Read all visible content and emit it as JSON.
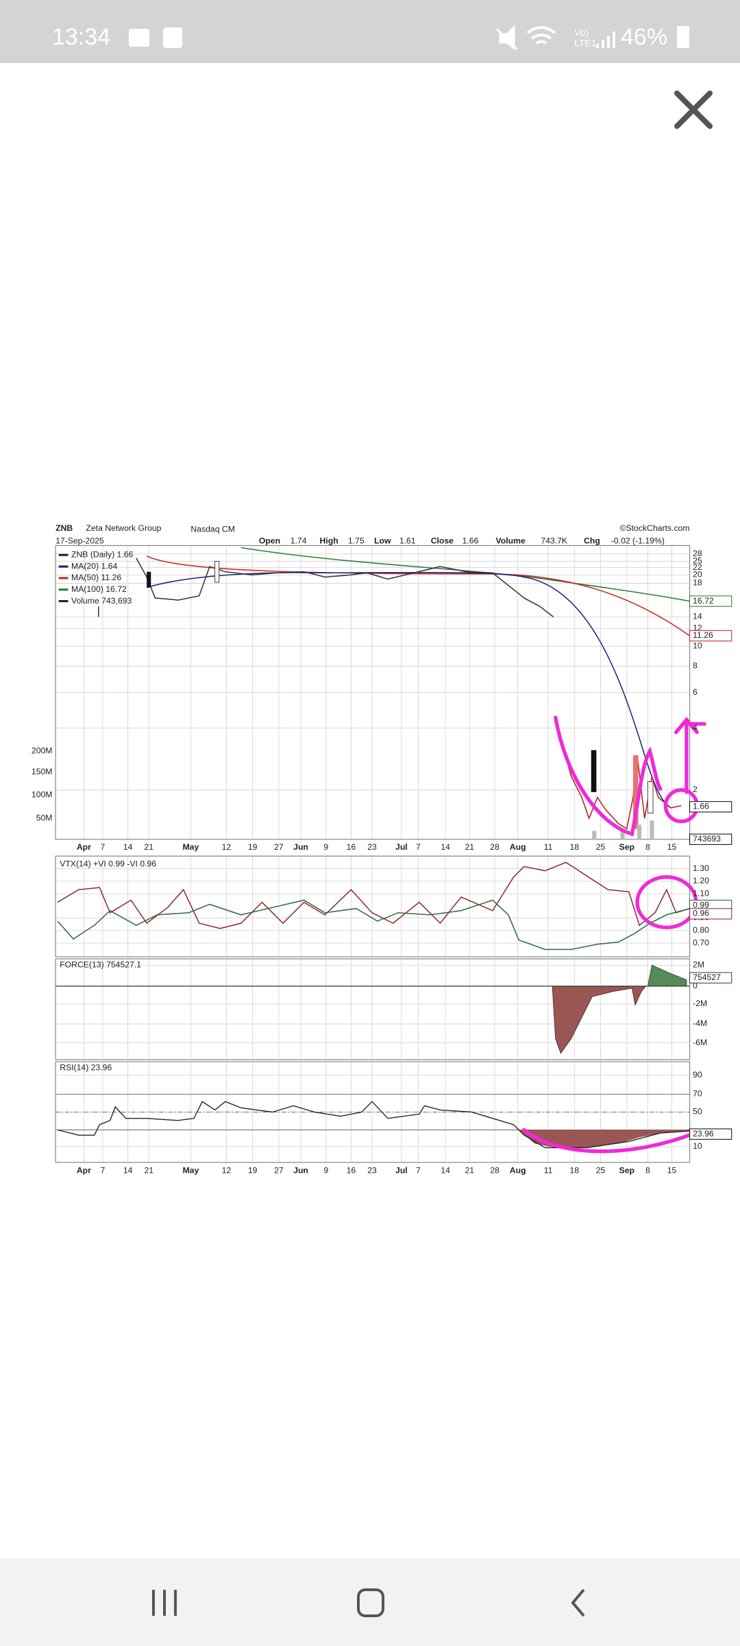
{
  "status_bar": {
    "time": "13:34",
    "network": "Vo)\nLTE1",
    "battery": "46%"
  },
  "chart": {
    "symbol": "ZNB",
    "company": "Zeta Network Group",
    "exchange": "Nasdaq CM",
    "source": "©StockCharts.com",
    "date": "17-Sep-2025",
    "quote": [
      [
        "Open",
        "1.74"
      ],
      [
        "High",
        "1.75"
      ],
      [
        "Low",
        "1.61"
      ],
      [
        "Close",
        "1.66"
      ],
      [
        "Volume",
        "743.7K"
      ],
      [
        "Chg",
        "-0.02 (-1.19%)"
      ]
    ],
    "legend": [
      "ZNB (Daily) 1.66",
      "MA(20) 1.64",
      "MA(50) 11.26",
      "MA(100) 16.72",
      "Volume 743,693"
    ],
    "price_ticks": [
      "28",
      "25",
      "22",
      "20",
      "18",
      "14",
      "12",
      "10",
      "8",
      "6",
      "4",
      "2"
    ],
    "volume_ticks": [
      "200M",
      "150M",
      "100M",
      "50M"
    ],
    "price_badges": [
      "16.72",
      "11.26",
      "1.66",
      "743693"
    ],
    "x_labels": [
      "Apr",
      "7",
      "14",
      "21",
      "May",
      "12",
      "19",
      "27",
      "Jun",
      "9",
      "16",
      "23",
      "Jul",
      "7",
      "14",
      "21",
      "28",
      "Aug",
      "11",
      "18",
      "25",
      "Sep",
      "8",
      "15"
    ],
    "vtx": {
      "label": "VTX(14) +VI 0.99 -VI 0.96",
      "ticks": [
        "1.30",
        "1.20",
        "1.10",
        "0.90",
        "0.80",
        "0.70"
      ],
      "badges": [
        "0.99",
        "0.96"
      ]
    },
    "force": {
      "label": "FORCE(13) 754527.1",
      "ticks": [
        "2M",
        "0",
        "-2M",
        "-4M",
        "-6M"
      ],
      "badge": "754527"
    },
    "rsi": {
      "label": "RSI(14) 23.96",
      "ticks": [
        "90",
        "70",
        "50",
        "10"
      ],
      "badge": "23.96"
    }
  }
}
